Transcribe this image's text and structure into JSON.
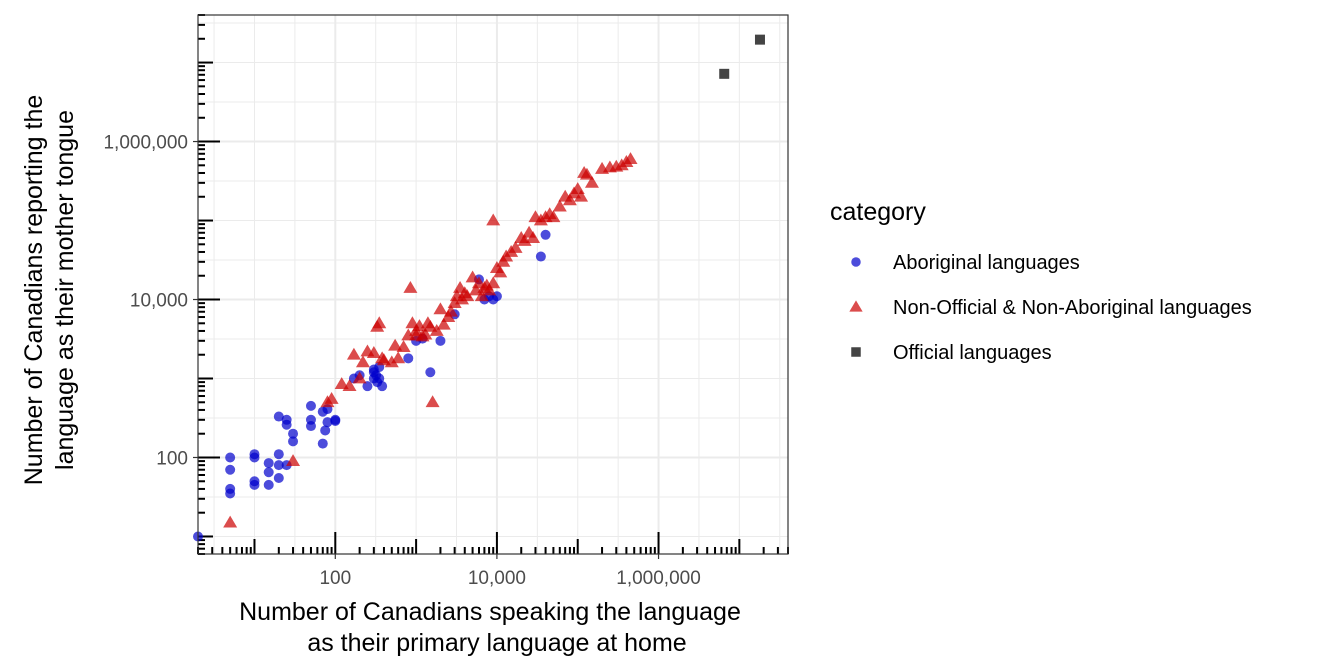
{
  "chart_data": {
    "type": "scatter",
    "xlabel": [
      "Number of Canadians speaking the language",
      "as their primary language at home"
    ],
    "ylabel": [
      "Number of Canadians reporting the",
      "language as their mother tongue"
    ],
    "x_scale": "log10",
    "y_scale": "log10",
    "xlim": [
      2,
      40000000
    ],
    "ylim": [
      6,
      40000000
    ],
    "x_ticks": [
      100,
      10000,
      1000000
    ],
    "x_tick_labels": [
      "100",
      "10,000",
      "1,000,000"
    ],
    "y_ticks": [
      100,
      10000,
      1000000
    ],
    "y_tick_labels": [
      "100",
      "10,000",
      "1,000,000"
    ],
    "grid": true,
    "rug": true,
    "legend": {
      "title": "category",
      "position": "right"
    },
    "series": [
      {
        "name": "Aboriginal languages",
        "shape": "circle",
        "color": "#0000CC",
        "points": [
          [
            2,
            10
          ],
          [
            5,
            100
          ],
          [
            5,
            70
          ],
          [
            5,
            35
          ],
          [
            5,
            40
          ],
          [
            10,
            100
          ],
          [
            10,
            110
          ],
          [
            10,
            50
          ],
          [
            10,
            45
          ],
          [
            15,
            65
          ],
          [
            15,
            85
          ],
          [
            15,
            45
          ],
          [
            20,
            80
          ],
          [
            20,
            110
          ],
          [
            20,
            55
          ],
          [
            20,
            330
          ],
          [
            25,
            300
          ],
          [
            25,
            260
          ],
          [
            25,
            80
          ],
          [
            30,
            160
          ],
          [
            30,
            200
          ],
          [
            50,
            450
          ],
          [
            50,
            250
          ],
          [
            50,
            300
          ],
          [
            70,
            380
          ],
          [
            70,
            150
          ],
          [
            75,
            220
          ],
          [
            80,
            280
          ],
          [
            80,
            410
          ],
          [
            100,
            300
          ],
          [
            100,
            290
          ],
          [
            170,
            1000
          ],
          [
            200,
            1100
          ],
          [
            250,
            800
          ],
          [
            300,
            1300
          ],
          [
            300,
            1000
          ],
          [
            300,
            1200
          ],
          [
            320,
            1100
          ],
          [
            350,
            1400
          ],
          [
            380,
            800
          ],
          [
            330,
            900
          ],
          [
            350,
            1000
          ],
          [
            800,
            1800
          ],
          [
            1000,
            3000
          ],
          [
            1200,
            3200
          ],
          [
            1500,
            1200
          ],
          [
            2000,
            3000
          ],
          [
            3000,
            6500
          ],
          [
            6000,
            18000
          ],
          [
            7000,
            10000
          ],
          [
            8000,
            11000
          ],
          [
            9000,
            10000
          ],
          [
            10000,
            11000
          ],
          [
            35000,
            35000
          ],
          [
            40000,
            66000
          ]
        ]
      },
      {
        "name": "Non-Official & Non-Aboriginal languages",
        "shape": "triangle",
        "color": "#CC0000",
        "points": [
          [
            5,
            15
          ],
          [
            30,
            90
          ],
          [
            80,
            500
          ],
          [
            90,
            550
          ],
          [
            120,
            850
          ],
          [
            150,
            800
          ],
          [
            170,
            2000
          ],
          [
            200,
            1000
          ],
          [
            220,
            1600
          ],
          [
            250,
            2200
          ],
          [
            300,
            2100
          ],
          [
            330,
            4500
          ],
          [
            350,
            5000
          ],
          [
            380,
            1800
          ],
          [
            400,
            1700
          ],
          [
            500,
            1600
          ],
          [
            550,
            2600
          ],
          [
            600,
            1800
          ],
          [
            700,
            2500
          ],
          [
            800,
            3500
          ],
          [
            850,
            14000
          ],
          [
            900,
            5000
          ],
          [
            1000,
            3500
          ],
          [
            1000,
            4000
          ],
          [
            1100,
            4600
          ],
          [
            1200,
            3400
          ],
          [
            1300,
            3600
          ],
          [
            1400,
            5000
          ],
          [
            1500,
            4500
          ],
          [
            1800,
            4000
          ],
          [
            2000,
            7500
          ],
          [
            2200,
            4800
          ],
          [
            1600,
            500
          ],
          [
            2500,
            6000
          ],
          [
            2700,
            7000
          ],
          [
            3000,
            9000
          ],
          [
            3200,
            11000
          ],
          [
            3500,
            14000
          ],
          [
            3700,
            10000
          ],
          [
            4000,
            12000
          ],
          [
            4300,
            11000
          ],
          [
            5000,
            19000
          ],
          [
            5500,
            13000
          ],
          [
            6000,
            16000
          ],
          [
            6500,
            11000
          ],
          [
            7000,
            14000
          ],
          [
            7500,
            15000
          ],
          [
            8000,
            13000
          ],
          [
            9000,
            16000
          ],
          [
            9000,
            100000
          ],
          [
            10000,
            25000
          ],
          [
            11000,
            22000
          ],
          [
            12000,
            30000
          ],
          [
            13000,
            35000
          ],
          [
            15000,
            40000
          ],
          [
            17000,
            45000
          ],
          [
            20000,
            60000
          ],
          [
            22000,
            55000
          ],
          [
            25000,
            70000
          ],
          [
            28000,
            60000
          ],
          [
            30000,
            110000
          ],
          [
            35000,
            100000
          ],
          [
            40000,
            110000
          ],
          [
            45000,
            120000
          ],
          [
            50000,
            110000
          ],
          [
            60000,
            150000
          ],
          [
            70000,
            200000
          ],
          [
            80000,
            180000
          ],
          [
            90000,
            220000
          ],
          [
            100000,
            250000
          ],
          [
            110000,
            200000
          ],
          [
            120000,
            400000
          ],
          [
            130000,
            380000
          ],
          [
            150000,
            300000
          ],
          [
            200000,
            450000
          ],
          [
            250000,
            470000
          ],
          [
            300000,
            480000
          ],
          [
            350000,
            500000
          ],
          [
            400000,
            550000
          ],
          [
            450000,
            600000
          ]
        ]
      },
      {
        "name": "Official languages",
        "shape": "square",
        "color": "#444444",
        "points": [
          [
            6500000,
            7200000
          ],
          [
            18000000,
            19500000
          ]
        ]
      }
    ]
  }
}
